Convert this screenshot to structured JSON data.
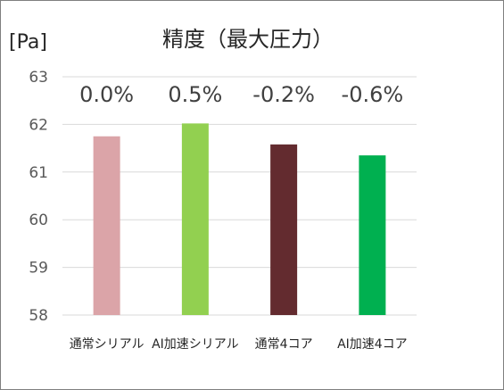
{
  "chart_data": {
    "type": "bar",
    "title": "精度（最大圧力）",
    "ylabel": "[Pa]",
    "xlabel": "",
    "ylim": [
      58,
      63
    ],
    "yticks": [
      "63",
      "62",
      "61",
      "60",
      "59",
      "58"
    ],
    "categories": [
      "通常シリアル",
      "AI加速シリアル",
      "通常4コア",
      "AI加速4コア"
    ],
    "values": [
      61.75,
      62.02,
      61.58,
      61.35
    ],
    "data_labels": [
      "0.0%",
      "0.5%",
      "-0.2%",
      "-0.6%"
    ],
    "colors": [
      "#dba4a8",
      "#92d050",
      "#632b2f",
      "#00b050"
    ],
    "grid": true,
    "legend": "none"
  }
}
